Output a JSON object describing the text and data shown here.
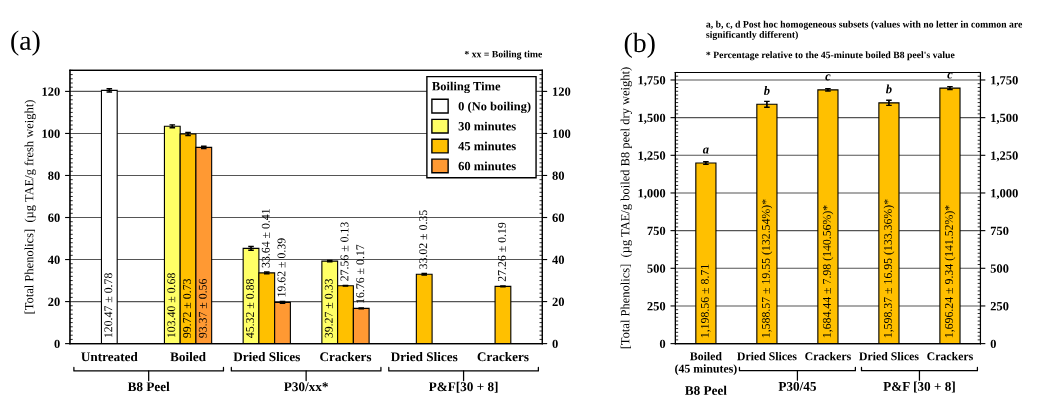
{
  "chart_data": [
    {
      "type": "bar",
      "title": "(a)",
      "ylabel": "[Total Phenolics]  (µg TAE/g fresh weight)",
      "legend_title": "Boiling Time",
      "legend": "top right",
      "grid": "y",
      "categories": [
        "Untreated",
        "Boiled",
        "Dried Slices",
        "Crackers",
        "Dried Slices",
        "Crackers"
      ],
      "series": [
        {
          "name": "0 (No boiling)",
          "color": "#ffffff",
          "values": [
            120.47,
            null,
            null,
            null,
            null,
            null
          ],
          "errors": [
            0.78,
            null,
            null,
            null,
            null,
            null
          ],
          "value_labels": [
            "120.47 ± 0.78",
            null,
            null,
            null,
            null,
            null
          ]
        },
        {
          "name": "30 minutes",
          "color": "#ffff66",
          "values": [
            null,
            103.4,
            45.32,
            39.27,
            null,
            null
          ],
          "errors": [
            null,
            0.68,
            0.88,
            0.33,
            null,
            null
          ],
          "value_labels": [
            null,
            "103.40 ± 0.68",
            "45.32 ± 0.88",
            "39.27 ± 0.33",
            null,
            null
          ]
        },
        {
          "name": "45 minutes",
          "color": "#ffc000",
          "values": [
            null,
            99.72,
            33.64,
            27.56,
            33.02,
            27.26
          ],
          "errors": [
            null,
            0.73,
            0.41,
            0.13,
            0.35,
            0.19
          ],
          "value_labels": [
            null,
            "99.72 ± 0.73",
            "33.64 ± 0.41",
            "27.56 ± 0.13",
            "33.02 ± 0.35",
            "27.26 ± 0.19"
          ]
        },
        {
          "name": "60 minutes",
          "color": "#ff9933",
          "values": [
            null,
            93.37,
            19.62,
            16.76,
            null,
            null
          ],
          "errors": [
            null,
            0.56,
            0.39,
            0.17,
            null,
            null
          ],
          "value_labels": [
            null,
            "93.37 ± 0.56",
            "19.62 ± 0.39",
            "16.76 ± 0.17",
            null,
            null
          ]
        }
      ],
      "ylim": [
        0,
        130
      ],
      "yticks": [
        0,
        20,
        40,
        60,
        80,
        100,
        120
      ],
      "y2lim": [
        0,
        130
      ],
      "y2ticks": [
        0,
        20,
        40,
        60,
        80,
        100,
        120
      ],
      "annotations": [
        "* xx = Boiling time",
        "B8 Peel",
        "P30/xx*",
        "P&F[30 + 8]"
      ]
    },
    {
      "type": "bar",
      "title": "(b)",
      "ylabel": "[Total Phenolics]  (µg TAE/g boiled B8 peel dry weight)",
      "grid": "y",
      "categories": [
        "Boiled\n(45 minutes)",
        "Dried Slices",
        "Crackers",
        "Dried Slices",
        "Crackers"
      ],
      "series": [
        {
          "color": "#ffc000",
          "values": [
            1198.56,
            1588.57,
            1684.44,
            1598.37,
            1696.24
          ],
          "errors": [
            8.71,
            19.55,
            7.98,
            16.95,
            9.34
          ],
          "value_labels": [
            "1,198.56 ± 8.71",
            "1,588.57 ± 19.55 (132.54%)*",
            "1,684.44 ± 7.98 (140.56%)*",
            "1,598.37 ± 16.95 (133.36%)*",
            "1,696.24 ± 9.34 (141.52%)*"
          ]
        }
      ],
      "ylim": [
        0,
        1800
      ],
      "yticks": [
        0,
        250,
        500,
        750,
        {
          "value": 1000,
          "label": "1,000"
        },
        {
          "value": 1250,
          "label": "1,250"
        },
        {
          "value": 1500,
          "label": "1,500"
        },
        {
          "value": 1750,
          "label": "1,750"
        }
      ],
      "y2lim": [
        0,
        1800
      ],
      "y2ticks": [
        0,
        250,
        500,
        750,
        {
          "value": 1000,
          "label": "1,000"
        },
        {
          "value": 1250,
          "label": "1,250"
        },
        {
          "value": 1500,
          "label": "1,500"
        },
        {
          "value": 1750,
          "label": "1,750"
        }
      ],
      "annotations": [
        "a, b, c, d Post hoc homogeneous subsets (values with no letter in common are significantly different)",
        "* Percentage relative to the 45-minute boiled B8 peel's value",
        {
          "text": "a",
          "y": 1198.56
        },
        {
          "text": "b",
          "y": 1588.57
        },
        {
          "text": "c",
          "y": 1684.44
        },
        {
          "text": "b",
          "y": 1598.37
        },
        {
          "text": "c",
          "y": 1696.24
        },
        "B8 Peel",
        "P30/45",
        "P&F [30 + 8]"
      ]
    }
  ]
}
